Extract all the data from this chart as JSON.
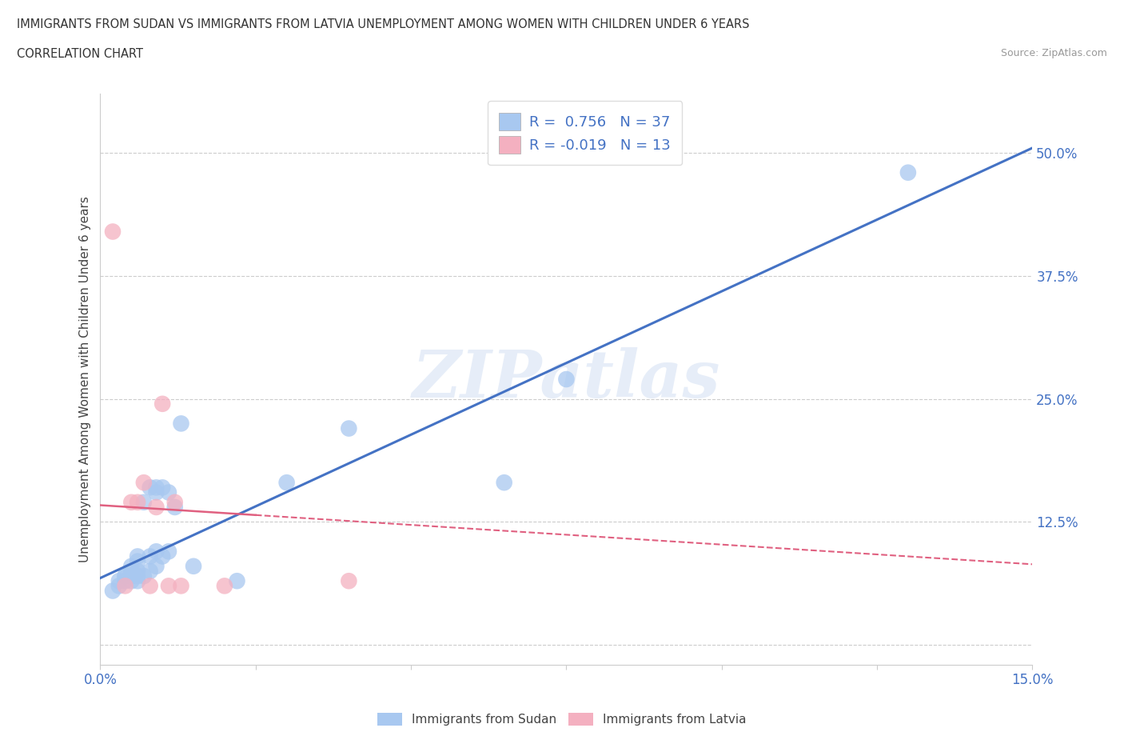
{
  "title_line1": "IMMIGRANTS FROM SUDAN VS IMMIGRANTS FROM LATVIA UNEMPLOYMENT AMONG WOMEN WITH CHILDREN UNDER 6 YEARS",
  "title_line2": "CORRELATION CHART",
  "source": "Source: ZipAtlas.com",
  "ylabel": "Unemployment Among Women with Children Under 6 years",
  "xlim": [
    0.0,
    0.15
  ],
  "ylim": [
    -0.02,
    0.56
  ],
  "xticks": [
    0.0,
    0.025,
    0.05,
    0.075,
    0.1,
    0.125,
    0.15
  ],
  "xtick_labels": [
    "0.0%",
    "",
    "",
    "",
    "",
    "",
    "15.0%"
  ],
  "yticks": [
    0.0,
    0.125,
    0.25,
    0.375,
    0.5
  ],
  "ytick_labels": [
    "",
    "12.5%",
    "25.0%",
    "37.5%",
    "50.0%"
  ],
  "R_sudan": 0.756,
  "N_sudan": 37,
  "R_latvia": -0.019,
  "N_latvia": 13,
  "color_sudan": "#a8c8f0",
  "color_latvia": "#f4b0c0",
  "line_color_sudan": "#4472c4",
  "line_color_latvia": "#e06080",
  "tick_color": "#4472c4",
  "watermark_text": "ZIPatlas",
  "sudan_x": [
    0.002,
    0.003,
    0.003,
    0.004,
    0.004,
    0.004,
    0.005,
    0.005,
    0.005,
    0.005,
    0.006,
    0.006,
    0.006,
    0.006,
    0.006,
    0.007,
    0.007,
    0.008,
    0.008,
    0.008,
    0.009,
    0.009,
    0.009,
    0.009,
    0.01,
    0.01,
    0.011,
    0.011,
    0.012,
    0.013,
    0.015,
    0.022,
    0.03,
    0.04,
    0.065,
    0.075,
    0.13
  ],
  "sudan_y": [
    0.055,
    0.06,
    0.065,
    0.07,
    0.065,
    0.07,
    0.065,
    0.07,
    0.075,
    0.08,
    0.065,
    0.07,
    0.075,
    0.085,
    0.09,
    0.07,
    0.145,
    0.075,
    0.09,
    0.16,
    0.08,
    0.095,
    0.155,
    0.16,
    0.09,
    0.16,
    0.095,
    0.155,
    0.14,
    0.225,
    0.08,
    0.065,
    0.165,
    0.22,
    0.165,
    0.27,
    0.48
  ],
  "latvia_x": [
    0.002,
    0.004,
    0.005,
    0.006,
    0.007,
    0.008,
    0.009,
    0.01,
    0.011,
    0.012,
    0.013,
    0.02,
    0.04
  ],
  "latvia_y": [
    0.42,
    0.06,
    0.145,
    0.145,
    0.165,
    0.06,
    0.14,
    0.245,
    0.06,
    0.145,
    0.06,
    0.06,
    0.065
  ],
  "sudan_line_x0": 0.0,
  "sudan_line_y0": 0.068,
  "sudan_line_x1": 0.15,
  "sudan_line_y1": 0.505,
  "latvia_line_x0": 0.0,
  "latvia_line_y0": 0.142,
  "latvia_line_x1": 0.15,
  "latvia_line_y1": 0.082,
  "bg_color": "#ffffff",
  "grid_color": "#cccccc"
}
